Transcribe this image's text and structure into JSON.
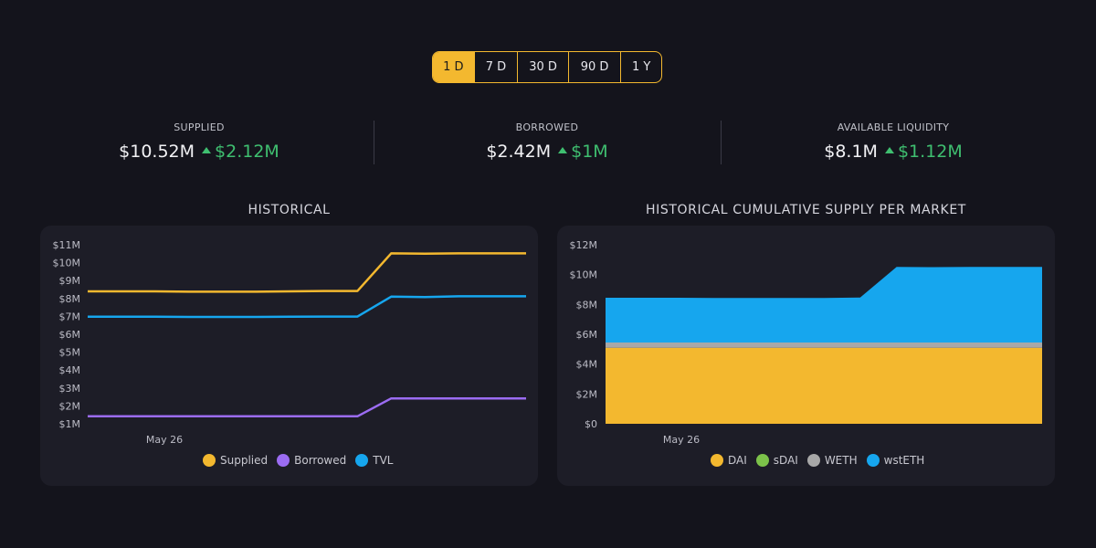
{
  "range_tabs": {
    "items": [
      "1 D",
      "7 D",
      "30 D",
      "90 D",
      "1 Y"
    ],
    "active": "1 D"
  },
  "stats": {
    "supplied": {
      "label": "SUPPLIED",
      "value": "$10.52M",
      "delta": "$2.12M"
    },
    "borrowed": {
      "label": "BORROWED",
      "value": "$2.42M",
      "delta": "$1M"
    },
    "liquidity": {
      "label": "AVAILABLE LIQUIDITY",
      "value": "$8.1M",
      "delta": "$1.12M"
    }
  },
  "colors": {
    "accent": "#f3b82f",
    "positive": "#3fbf70",
    "supplied": "#f3b82f",
    "borrowed": "#9b6cf2",
    "tvl": "#16a6ee",
    "dai": "#f3b82f",
    "sdai": "#7cc24a",
    "weth": "#a8a8a8",
    "wsteth": "#16a6ee"
  },
  "chart_data": [
    {
      "type": "line",
      "title": "HISTORICAL",
      "x_tick_labels": [
        "May 26"
      ],
      "y_tick_labels": [
        "$1M",
        "$2M",
        "$3M",
        "$4M",
        "$5M",
        "$6M",
        "$7M",
        "$8M",
        "$9M",
        "$10M",
        "$11M"
      ],
      "ylim": [
        1,
        11
      ],
      "y_unit": "M",
      "x": [
        0,
        1,
        2,
        3,
        4,
        5,
        6,
        7,
        8,
        9,
        10,
        11,
        12,
        13
      ],
      "series": [
        {
          "name": "Supplied",
          "values": [
            8.4,
            8.4,
            8.4,
            8.38,
            8.38,
            8.38,
            8.4,
            8.42,
            8.42,
            10.52,
            10.5,
            10.52,
            10.52,
            10.52
          ]
        },
        {
          "name": "Borrowed",
          "values": [
            1.42,
            1.42,
            1.42,
            1.42,
            1.42,
            1.42,
            1.42,
            1.42,
            1.42,
            2.42,
            2.42,
            2.42,
            2.42,
            2.42
          ]
        },
        {
          "name": "TVL",
          "values": [
            6.98,
            6.98,
            6.98,
            6.97,
            6.97,
            6.97,
            6.98,
            6.99,
            6.99,
            8.1,
            8.08,
            8.12,
            8.12,
            8.12
          ]
        }
      ],
      "legend_position": "bottom"
    },
    {
      "type": "area",
      "title": "HISTORICAL CUMULATIVE SUPPLY PER MARKET",
      "x_tick_labels": [
        "May 26"
      ],
      "y_tick_labels": [
        "$0",
        "$2M",
        "$4M",
        "$6M",
        "$8M",
        "$10M",
        "$12M"
      ],
      "ylim": [
        0,
        12
      ],
      "y_unit": "M",
      "stacked": true,
      "x": [
        0,
        1,
        2,
        3,
        4,
        5,
        6,
        7,
        8,
        9,
        10,
        11,
        12
      ],
      "series": [
        {
          "name": "DAI",
          "values": [
            5.1,
            5.1,
            5.1,
            5.1,
            5.1,
            5.1,
            5.1,
            5.1,
            5.1,
            5.1,
            5.1,
            5.1,
            5.1
          ]
        },
        {
          "name": "sDAI",
          "values": [
            0,
            0,
            0,
            0,
            0,
            0,
            0,
            0,
            0,
            0,
            0,
            0,
            0
          ]
        },
        {
          "name": "WETH",
          "values": [
            0.35,
            0.35,
            0.35,
            0.35,
            0.35,
            0.35,
            0.35,
            0.35,
            0.35,
            0.35,
            0.35,
            0.35,
            0.35
          ]
        },
        {
          "name": "wstETH",
          "values": [
            3.0,
            3.0,
            3.0,
            2.98,
            2.98,
            2.98,
            2.98,
            3.02,
            5.07,
            5.05,
            5.07,
            5.07,
            5.07
          ]
        }
      ],
      "legend_position": "bottom"
    }
  ]
}
